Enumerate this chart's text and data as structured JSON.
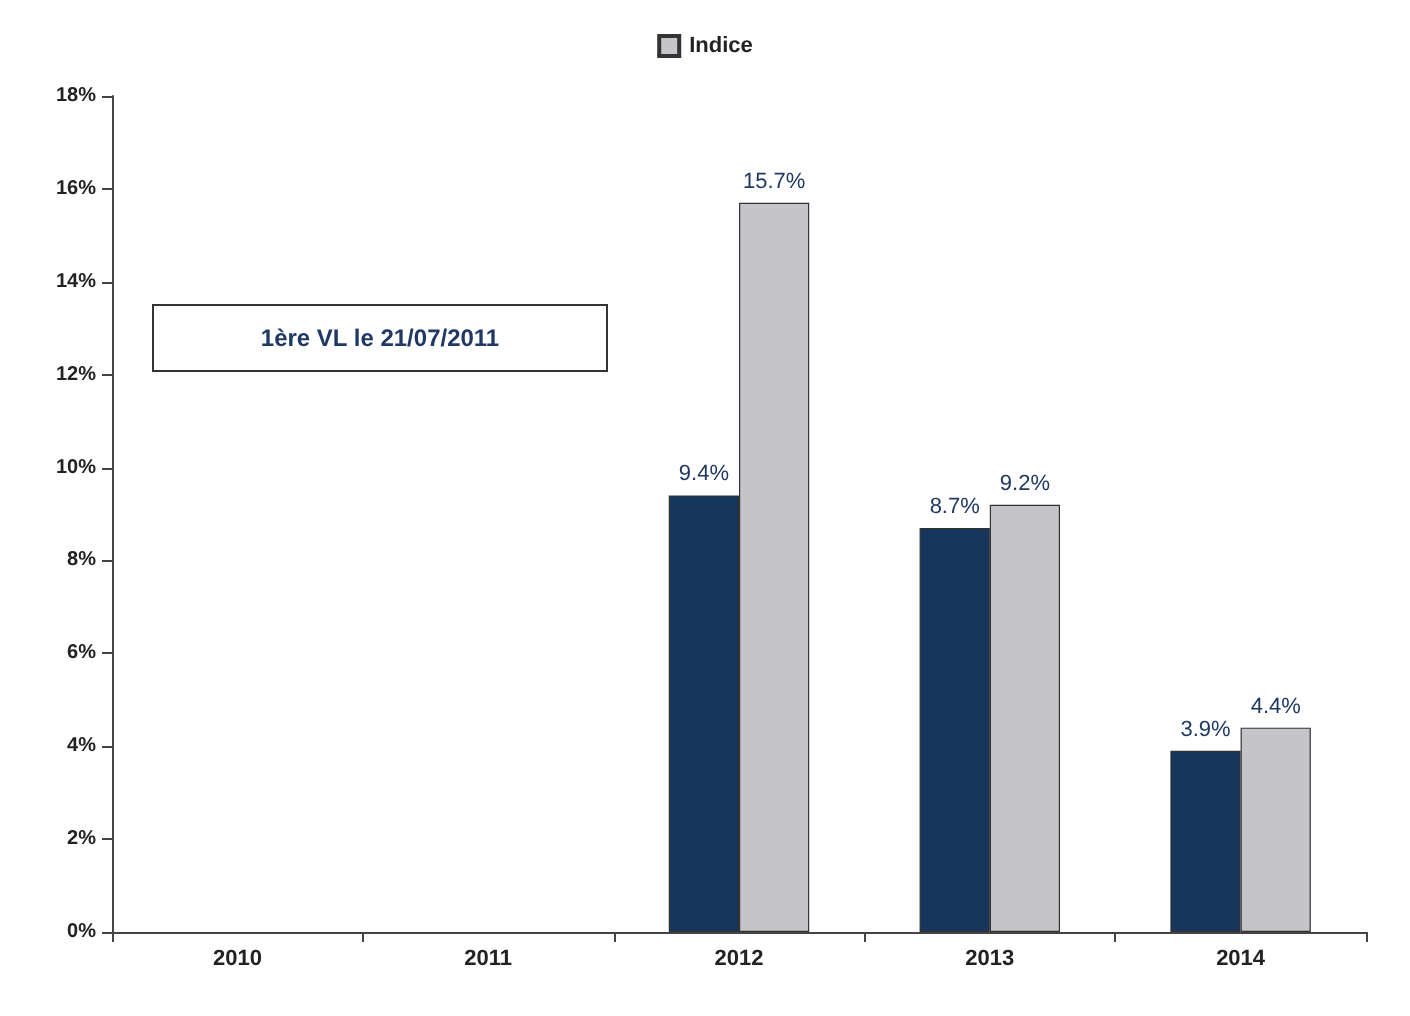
{
  "chart_data": {
    "type": "bar",
    "categories": [
      "2010",
      "2011",
      "2012",
      "2013",
      "2014"
    ],
    "series": [
      {
        "color": "#17365d",
        "values": [
          null,
          null,
          9.4,
          8.7,
          3.9
        ],
        "value_labels": [
          null,
          null,
          "9.4%",
          "8.7%",
          "3.9%"
        ]
      },
      {
        "name": "Indice",
        "color": "#c4c4c9",
        "values": [
          null,
          null,
          15.7,
          9.2,
          4.4
        ],
        "value_labels": [
          null,
          null,
          "15.7%",
          "9.2%",
          "4.4%"
        ]
      }
    ],
    "ylim": [
      0,
      18
    ],
    "yticks": [
      {
        "value": 0,
        "label": "0%"
      },
      {
        "value": 2,
        "label": "2%"
      },
      {
        "value": 4,
        "label": "4%"
      },
      {
        "value": 6,
        "label": "6%"
      },
      {
        "value": 8,
        "label": "8%"
      },
      {
        "value": 10,
        "label": "10%"
      },
      {
        "value": 12,
        "label": "12%"
      },
      {
        "value": 14,
        "label": "14%"
      },
      {
        "value": 16,
        "label": "16%"
      },
      {
        "value": 18,
        "label": "18%"
      }
    ],
    "annotations": [
      "1ère VL le 21/07/2011"
    ],
    "grid": false,
    "legend": "top"
  }
}
